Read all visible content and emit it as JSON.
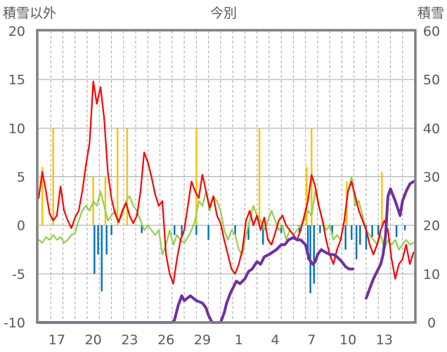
{
  "chart_data": {
    "type": "line",
    "title": "今別",
    "left_axis_label": "積雪以外",
    "right_axis_label": "積雪",
    "left_ylim": [
      -10,
      20
    ],
    "right_ylim": [
      0,
      60
    ],
    "left_ticks": [
      20,
      15,
      10,
      5,
      0,
      -5,
      -10
    ],
    "right_ticks": [
      60,
      50,
      40,
      30,
      20,
      10,
      0
    ],
    "x_range": [
      0,
      31
    ],
    "x_ticks": [
      {
        "x": 1.5,
        "label": "17"
      },
      {
        "x": 4.5,
        "label": "20"
      },
      {
        "x": 7.5,
        "label": "23"
      },
      {
        "x": 10.5,
        "label": "26"
      },
      {
        "x": 13.5,
        "label": "29"
      },
      {
        "x": 16.5,
        "label": "1"
      },
      {
        "x": 19.5,
        "label": "4"
      },
      {
        "x": 22.5,
        "label": "7"
      },
      {
        "x": 25.5,
        "label": "10"
      },
      {
        "x": 28.5,
        "label": "13"
      }
    ],
    "grid": true,
    "colors": {
      "temperature_red": "#ff0000",
      "temperature_green": "#92d050",
      "precipitation": "#ffc000",
      "snow_change": "#0070c0",
      "snow_depth": "#7030a0",
      "frame": "#808080",
      "grid": "#a6a6a6",
      "text": "#595959"
    },
    "series": [
      {
        "color": "red",
        "axis": "left",
        "x": [
          0,
          0.3,
          0.6,
          0.9,
          1.2,
          1.5,
          1.8,
          2.1,
          2.4,
          2.7,
          3.0,
          3.3,
          3.6,
          3.9,
          4.2,
          4.5,
          4.8,
          5.1,
          5.4,
          5.7,
          6.0,
          6.3,
          6.6,
          6.9,
          7.2,
          7.5,
          7.8,
          8.1,
          8.4,
          8.7,
          9.0,
          9.3,
          9.6,
          9.9,
          10.2,
          10.5,
          10.8,
          11.1,
          11.4,
          11.7,
          12.0,
          12.3,
          12.6,
          12.9,
          13.2,
          13.5,
          13.8,
          14.1,
          14.4,
          14.7,
          15.0,
          15.3,
          15.6,
          15.9,
          16.2,
          16.5,
          16.8,
          17.1,
          17.4,
          17.7,
          18.0,
          18.3,
          18.6,
          18.9,
          19.2,
          19.5,
          19.8,
          20.1,
          20.4,
          20.7,
          21.0,
          21.3,
          21.6,
          21.9,
          22.2,
          22.5,
          22.8,
          23.1,
          23.4,
          23.7,
          24.0,
          24.3,
          24.6,
          24.9,
          25.2,
          25.5,
          25.8,
          26.1,
          26.4,
          26.7,
          27.0,
          27.3,
          27.6,
          27.9,
          28.2,
          28.5,
          28.8,
          29.1,
          29.4,
          29.7,
          30.0,
          30.3,
          30.6,
          30.9
        ],
        "y": [
          2.8,
          5.5,
          3.5,
          1.2,
          0.5,
          1.0,
          4.0,
          1.5,
          0.5,
          -0.3,
          0.8,
          1.5,
          3.5,
          6.2,
          8.5,
          14.8,
          12.5,
          14.2,
          11.0,
          5.5,
          2.8,
          1.2,
          0.3,
          1.5,
          2.3,
          1.0,
          0.2,
          1.0,
          3.5,
          7.5,
          6.5,
          5.0,
          3.2,
          2.0,
          2.5,
          -3.0,
          -5.0,
          -6.0,
          -3.5,
          -1.5,
          -0.5,
          2.0,
          4.5,
          3.5,
          2.8,
          5.2,
          3.5,
          1.8,
          3.0,
          1.0,
          0.2,
          -1.5,
          -3.0,
          -4.5,
          -5.0,
          -4.0,
          -2.5,
          0.5,
          1.5,
          0.0,
          1.0,
          -0.5,
          0.8,
          -1.5,
          -2.0,
          -0.8,
          0.5,
          1.0,
          0.0,
          -0.5,
          -1.0,
          -1.5,
          -0.5,
          1.0,
          2.5,
          5.2,
          4.0,
          2.0,
          0.5,
          -1.5,
          -3.0,
          -4.0,
          -2.5,
          -1.5,
          0.5,
          3.5,
          4.5,
          3.0,
          1.5,
          0.5,
          -0.5,
          -2.0,
          -3.0,
          -2.0,
          -0.5,
          0.5,
          -0.5,
          -3.5,
          -5.5,
          -4.0,
          -3.5,
          -2.0,
          -4.0,
          -2.8
        ]
      },
      {
        "color": "green",
        "axis": "left",
        "x": [
          0,
          0.3,
          0.6,
          0.9,
          1.2,
          1.5,
          1.8,
          2.1,
          2.4,
          2.7,
          3.0,
          3.3,
          3.6,
          3.9,
          4.2,
          4.5,
          4.8,
          5.1,
          5.4,
          5.7,
          6.0,
          6.3,
          6.6,
          6.9,
          7.2,
          7.5,
          7.8,
          8.1,
          8.4,
          8.7,
          9.0,
          9.3,
          9.6,
          9.9,
          10.2,
          10.5,
          10.8,
          11.1,
          11.4,
          11.7,
          12.0,
          12.3,
          12.6,
          12.9,
          13.2,
          13.5,
          13.8,
          14.1,
          14.4,
          14.7,
          15.0,
          15.3,
          15.6,
          15.9,
          16.2,
          16.5,
          16.8,
          17.1,
          17.4,
          17.7,
          18.0,
          18.3,
          18.6,
          18.9,
          19.2,
          19.5,
          19.8,
          20.1,
          20.4,
          20.7,
          21.0,
          21.3,
          21.6,
          21.9,
          22.2,
          22.5,
          22.8,
          23.1,
          23.4,
          23.7,
          24.0,
          24.3,
          24.6,
          24.9,
          25.2,
          25.5,
          25.8,
          26.1,
          26.4,
          26.7,
          27.0,
          27.3,
          27.6,
          27.9,
          28.2,
          28.5,
          28.8,
          29.1,
          29.4,
          29.7,
          30.0,
          30.3,
          30.6,
          30.9
        ],
        "y": [
          -1.5,
          -1.8,
          -1.2,
          -1.5,
          -1.0,
          -1.5,
          -1.2,
          -1.8,
          -1.5,
          -1.0,
          -0.8,
          0.5,
          1.5,
          2.0,
          1.5,
          2.5,
          2.0,
          3.5,
          2.0,
          0.5,
          1.0,
          1.5,
          0.5,
          1.0,
          2.5,
          3.0,
          2.0,
          1.5,
          0.5,
          -0.5,
          0.0,
          -0.5,
          -1.0,
          -0.5,
          -3.0,
          -2.0,
          -0.5,
          -2.0,
          -1.0,
          -1.5,
          -1.8,
          -1.2,
          -0.5,
          0.5,
          2.5,
          2.0,
          3.5,
          1.5,
          3.0,
          2.5,
          1.5,
          -0.5,
          -1.5,
          -0.5,
          -1.0,
          -2.5,
          -3.0,
          -1.0,
          0.5,
          2.0,
          1.0,
          0.5,
          -0.5,
          0.5,
          1.5,
          0.5,
          -0.5,
          0.0,
          -1.5,
          -0.5,
          -1.0,
          -0.5,
          0.0,
          0.5,
          1.5,
          1.0,
          3.5,
          2.0,
          0.5,
          -0.5,
          0.0,
          -1.5,
          -1.0,
          -1.5,
          0.5,
          3.5,
          5.0,
          2.0,
          2.5,
          1.0,
          -0.5,
          -1.0,
          -1.5,
          -2.0,
          -1.0,
          -2.5,
          -1.5,
          -2.0,
          -1.5,
          -2.5,
          -2.0,
          -1.5,
          -2.0,
          -1.8
        ]
      },
      {
        "color": "purple",
        "axis": "right",
        "x": [
          0,
          11.0,
          11.2,
          11.5,
          11.8,
          12.0,
          12.5,
          13.0,
          13.5,
          13.8,
          14.0,
          14.3,
          15.0,
          15.3,
          15.5,
          15.8,
          16.0,
          16.3,
          16.6,
          17.0,
          17.3,
          17.6,
          18.0,
          18.3,
          18.6,
          19.0,
          19.3,
          19.6,
          20.0,
          20.3,
          20.6,
          21.0,
          21.3,
          21.6,
          22.0,
          22.3,
          22.6,
          22.8,
          23.0,
          23.3,
          23.6,
          24.0,
          24.3,
          24.6,
          25.0,
          25.3,
          25.6,
          25.9
        ],
        "y": [
          0,
          0,
          0.5,
          3.5,
          5.5,
          4.5,
          5.5,
          4.5,
          4.0,
          3.0,
          1.5,
          0,
          0,
          2.0,
          4.0,
          6.0,
          7.0,
          8.5,
          8.0,
          9.0,
          10.5,
          11.0,
          12.5,
          12.0,
          13.5,
          14.0,
          14.5,
          15.0,
          16.0,
          16.0,
          17.0,
          17.5,
          17.0,
          17.0,
          16.0,
          13.0,
          12.0,
          12.5,
          14.0,
          15.0,
          14.5,
          14.0,
          14.0,
          13.5,
          12.5,
          11.5,
          11.0,
          11.0
        ],
        "x2": [
          27.0,
          27.3,
          27.6,
          28.0,
          28.2,
          28.4,
          28.6,
          28.8,
          29.0,
          29.4,
          29.8,
          30.0,
          30.3,
          30.6,
          30.9
        ],
        "y2": [
          5.0,
          7.0,
          9.0,
          11.0,
          12.0,
          14.0,
          18.0,
          26.0,
          27.5,
          25.0,
          22.0,
          25.0,
          27.0,
          28.5,
          29.0
        ]
      }
    ],
    "precipitation": [
      {
        "x": 0.3,
        "value": 6
      },
      {
        "x": 1.2,
        "value": 10
      },
      {
        "x": 4.5,
        "value": 5
      },
      {
        "x": 5.5,
        "value": 5
      },
      {
        "x": 6.5,
        "value": 10
      },
      {
        "x": 7.3,
        "value": 10
      },
      {
        "x": 13.0,
        "value": 10
      },
      {
        "x": 18.2,
        "value": 10
      },
      {
        "x": 22.1,
        "value": 6
      },
      {
        "x": 22.5,
        "value": 10
      },
      {
        "x": 25.4,
        "value": 4.5
      },
      {
        "x": 28.3,
        "value": 5.5
      }
    ],
    "snow_change": [
      {
        "x": 4.6,
        "value": -5
      },
      {
        "x": 4.9,
        "value": -3
      },
      {
        "x": 5.2,
        "value": -6.8
      },
      {
        "x": 5.6,
        "value": -3
      },
      {
        "x": 6.0,
        "value": -1
      },
      {
        "x": 8.5,
        "value": -0.8
      },
      {
        "x": 11.2,
        "value": -1
      },
      {
        "x": 11.8,
        "value": -1.2
      },
      {
        "x": 13.0,
        "value": -1
      },
      {
        "x": 14.0,
        "value": -1.5
      },
      {
        "x": 16.2,
        "value": -1
      },
      {
        "x": 17.3,
        "value": -1.5
      },
      {
        "x": 18.5,
        "value": -2
      },
      {
        "x": 20.0,
        "value": -0.8
      },
      {
        "x": 21.5,
        "value": -0.8
      },
      {
        "x": 22.2,
        "value": -3.5
      },
      {
        "x": 22.4,
        "value": -7
      },
      {
        "x": 22.7,
        "value": -6
      },
      {
        "x": 23.2,
        "value": -0.8
      },
      {
        "x": 24.2,
        "value": -1
      },
      {
        "x": 25.3,
        "value": -2.5
      },
      {
        "x": 25.8,
        "value": -1.5
      },
      {
        "x": 26.2,
        "value": -3.5
      },
      {
        "x": 26.5,
        "value": -2
      },
      {
        "x": 27.0,
        "value": -2.5
      },
      {
        "x": 27.5,
        "value": -1.2
      },
      {
        "x": 28.0,
        "value": -1
      },
      {
        "x": 29.5,
        "value": -1.2
      },
      {
        "x": 30.2,
        "value": -0.5
      }
    ]
  }
}
